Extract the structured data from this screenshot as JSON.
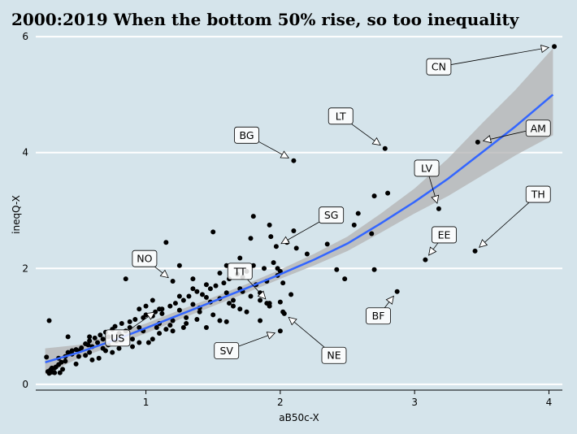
{
  "chart_data": {
    "type": "scatter",
    "title": "2000:2019 When the bottom 50% rise, so too inequality",
    "xlabel": "aB50c-X",
    "ylabel": "ineqQ-X",
    "xlim": [
      0.18,
      4.1
    ],
    "ylim": [
      -0.1,
      6.1
    ],
    "xticks": [
      1,
      2,
      3,
      4
    ],
    "yticks": [
      0,
      2,
      4,
      6
    ],
    "grid": "horizontal",
    "background": "#d5e4eb",
    "point_color": "#000000",
    "fit_color": "#3366ff",
    "ribbon_color": "#b3b3b3",
    "fit": {
      "type": "loess",
      "x": [
        0.25,
        0.5,
        0.75,
        1.0,
        1.25,
        1.5,
        1.75,
        2.0,
        2.25,
        2.5,
        2.75,
        3.0,
        3.25,
        3.5,
        3.75,
        4.03
      ],
      "y": [
        0.38,
        0.55,
        0.75,
        0.97,
        1.2,
        1.43,
        1.66,
        1.9,
        2.15,
        2.43,
        2.78,
        3.15,
        3.55,
        4.0,
        4.45,
        5.0
      ],
      "upper": [
        0.62,
        0.68,
        0.86,
        1.05,
        1.28,
        1.5,
        1.73,
        1.98,
        2.25,
        2.55,
        2.95,
        3.38,
        3.9,
        4.5,
        5.08,
        5.8
      ],
      "lower": [
        0.17,
        0.45,
        0.66,
        0.88,
        1.12,
        1.35,
        1.58,
        1.82,
        2.05,
        2.3,
        2.62,
        2.95,
        3.25,
        3.6,
        3.95,
        4.3
      ]
    },
    "points": [
      [
        0.26,
        0.47
      ],
      [
        0.27,
        0.22
      ],
      [
        0.28,
        0.19
      ],
      [
        0.29,
        0.25
      ],
      [
        0.3,
        0.21
      ],
      [
        0.32,
        0.28
      ],
      [
        0.33,
        0.3
      ],
      [
        0.35,
        0.34
      ],
      [
        0.36,
        0.2
      ],
      [
        0.37,
        0.38
      ],
      [
        0.38,
        0.26
      ],
      [
        0.4,
        0.48
      ],
      [
        0.42,
        0.55
      ],
      [
        0.45,
        0.52
      ],
      [
        0.48,
        0.6
      ],
      [
        0.5,
        0.58
      ],
      [
        0.52,
        0.63
      ],
      [
        0.55,
        0.7
      ],
      [
        0.57,
        0.68
      ],
      [
        0.58,
        0.75
      ],
      [
        0.6,
        0.65
      ],
      [
        0.62,
        0.8
      ],
      [
        0.64,
        0.72
      ],
      [
        0.66,
        0.85
      ],
      [
        0.68,
        0.78
      ],
      [
        0.7,
        0.9
      ],
      [
        0.72,
        0.82
      ],
      [
        0.75,
        0.95
      ],
      [
        0.77,
        1.0
      ],
      [
        0.8,
        0.88
      ],
      [
        0.82,
        1.05
      ],
      [
        0.85,
        0.92
      ],
      [
        0.88,
        1.08
      ],
      [
        0.9,
        0.78
      ],
      [
        0.92,
        1.12
      ],
      [
        0.95,
        0.98
      ],
      [
        0.98,
        1.15
      ],
      [
        1.0,
        1.2
      ],
      [
        1.02,
        0.72
      ],
      [
        1.05,
        1.18
      ],
      [
        1.07,
        1.25
      ],
      [
        1.1,
        1.05
      ],
      [
        1.12,
        1.3
      ],
      [
        1.15,
        0.95
      ],
      [
        1.18,
        1.35
      ],
      [
        1.2,
        1.1
      ],
      [
        1.22,
        1.4
      ],
      [
        1.25,
        1.28
      ],
      [
        1.28,
        1.45
      ],
      [
        1.3,
        1.15
      ],
      [
        1.32,
        1.52
      ],
      [
        1.35,
        1.38
      ],
      [
        1.38,
        1.6
      ],
      [
        1.4,
        1.32
      ],
      [
        1.42,
        1.55
      ],
      [
        1.45,
        1.5
      ],
      [
        1.48,
        1.65
      ],
      [
        1.5,
        1.2
      ],
      [
        1.52,
        1.7
      ],
      [
        1.55,
        1.48
      ],
      [
        1.58,
        1.75
      ],
      [
        1.6,
        1.58
      ],
      [
        1.62,
        1.82
      ],
      [
        1.65,
        1.45
      ],
      [
        1.68,
        1.9
      ],
      [
        1.7,
        1.65
      ],
      [
        1.72,
        1.6
      ],
      [
        1.75,
        1.95
      ],
      [
        1.78,
        1.52
      ],
      [
        1.8,
        2.05
      ],
      [
        1.82,
        1.72
      ],
      [
        1.85,
        1.45
      ],
      [
        1.88,
        2.0
      ],
      [
        1.9,
        1.78
      ],
      [
        1.92,
        1.35
      ],
      [
        1.95,
        2.1
      ],
      [
        1.98,
        1.88
      ],
      [
        2.0,
        1.95
      ],
      [
        0.28,
        1.1
      ],
      [
        0.42,
        0.82
      ],
      [
        0.7,
        0.58
      ],
      [
        0.85,
        1.82
      ],
      [
        1.0,
        1.35
      ],
      [
        1.15,
        2.45
      ],
      [
        1.25,
        2.05
      ],
      [
        1.35,
        1.82
      ],
      [
        1.5,
        2.63
      ],
      [
        1.6,
        2.05
      ],
      [
        1.7,
        2.18
      ],
      [
        1.78,
        2.52
      ],
      [
        1.8,
        2.9
      ],
      [
        1.93,
        2.55
      ],
      [
        2.05,
        2.45
      ],
      [
        2.1,
        2.65
      ],
      [
        2.12,
        2.35
      ],
      [
        2.2,
        2.25
      ],
      [
        2.35,
        2.42
      ],
      [
        2.42,
        1.98
      ],
      [
        2.48,
        1.82
      ],
      [
        2.55,
        2.75
      ],
      [
        2.58,
        2.95
      ],
      [
        2.68,
        2.6
      ],
      [
        2.7,
        3.25
      ],
      [
        2.7,
        1.98
      ],
      [
        2.8,
        3.3
      ],
      [
        1.92,
        2.75
      ],
      [
        1.98,
        2.0
      ],
      [
        2.02,
        1.75
      ],
      [
        2.08,
        1.55
      ],
      [
        1.7,
        1.3
      ],
      [
        1.55,
        1.1
      ],
      [
        1.45,
        0.98
      ],
      [
        1.4,
        1.25
      ],
      [
        1.3,
        1.05
      ],
      [
        1.2,
        0.92
      ],
      [
        1.1,
        0.88
      ],
      [
        1.05,
        0.78
      ],
      [
        0.95,
        0.72
      ],
      [
        0.9,
        0.65
      ],
      [
        0.8,
        0.62
      ],
      [
        0.75,
        0.55
      ],
      [
        0.65,
        0.45
      ],
      [
        0.6,
        0.42
      ],
      [
        0.55,
        0.5
      ],
      [
        0.5,
        0.48
      ],
      [
        0.45,
        0.58
      ],
      [
        0.4,
        0.4
      ],
      [
        0.35,
        0.45
      ],
      [
        0.32,
        0.2
      ],
      [
        0.3,
        0.28
      ],
      [
        2.0,
        1.42
      ],
      [
        1.9,
        1.4
      ],
      [
        1.75,
        1.25
      ],
      [
        1.6,
        1.08
      ],
      [
        1.48,
        1.42
      ],
      [
        1.38,
        1.12
      ],
      [
        1.28,
        0.98
      ],
      [
        1.18,
        1.02
      ],
      [
        1.08,
        0.98
      ],
      [
        0.98,
        0.92
      ],
      [
        0.88,
        0.98
      ],
      [
        0.78,
        0.75
      ],
      [
        0.68,
        0.62
      ],
      [
        0.58,
        0.55
      ],
      [
        0.48,
        0.35
      ],
      [
        1.85,
        1.58
      ],
      [
        1.65,
        1.35
      ],
      [
        1.35,
        1.65
      ],
      [
        1.25,
        1.52
      ],
      [
        1.12,
        1.22
      ],
      [
        0.58,
        0.82
      ],
      [
        0.72,
        0.68
      ],
      [
        0.95,
        1.3
      ],
      [
        1.05,
        1.45
      ],
      [
        1.45,
        1.72
      ],
      [
        1.55,
        1.92
      ],
      [
        1.62,
        1.4
      ],
      [
        1.72,
        1.85
      ],
      [
        2.02,
        1.25
      ],
      [
        1.85,
        1.1
      ]
    ],
    "annotations": [
      {
        "label": "CN",
        "x": 4.04,
        "y": 5.83,
        "bx": 3.18,
        "by": 5.48
      },
      {
        "label": "AM",
        "x": 3.47,
        "y": 4.18,
        "bx": 3.92,
        "by": 4.42
      },
      {
        "label": "LT",
        "x": 2.78,
        "y": 4.07,
        "bx": 2.45,
        "by": 4.63
      },
      {
        "label": "BG",
        "x": 2.1,
        "y": 3.86,
        "bx": 1.75,
        "by": 4.3
      },
      {
        "label": "LV",
        "x": 3.18,
        "y": 3.03,
        "bx": 3.09,
        "by": 3.73
      },
      {
        "label": "TH",
        "x": 3.45,
        "y": 2.3,
        "bx": 3.92,
        "by": 3.28
      },
      {
        "label": "EE",
        "x": 3.08,
        "y": 2.15,
        "bx": 3.22,
        "by": 2.58
      },
      {
        "label": "SG",
        "x": 1.97,
        "y": 2.38,
        "bx": 2.38,
        "by": 2.92
      },
      {
        "label": "NO",
        "x": 1.2,
        "y": 1.78,
        "bx": 0.99,
        "by": 2.17
      },
      {
        "label": "TT",
        "x": 1.92,
        "y": 1.4,
        "bx": 1.7,
        "by": 1.95
      },
      {
        "label": "BF",
        "x": 2.87,
        "y": 1.6,
        "bx": 2.73,
        "by": 1.18
      },
      {
        "label": "US",
        "x": 1.1,
        "y": 1.3,
        "bx": 0.79,
        "by": 0.8
      },
      {
        "label": "SV",
        "x": 2.0,
        "y": 0.92,
        "bx": 1.6,
        "by": 0.58
      },
      {
        "label": "NE",
        "x": 2.03,
        "y": 1.22,
        "bx": 2.4,
        "by": 0.5
      }
    ]
  }
}
